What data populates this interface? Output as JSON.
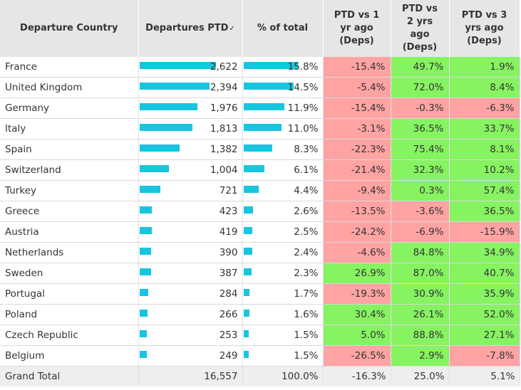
{
  "headers": {
    "country": "Departure Country",
    "departures": "Departures PTD",
    "share": "% of total",
    "vs1": [
      "PTD vs 1",
      "yr ago",
      "(Deps)"
    ],
    "vs2": [
      "PTD vs",
      "2 yrs",
      "ago",
      "(Deps)"
    ],
    "vs3": [
      "PTD vs 3",
      "yrs ago",
      "(Deps)"
    ]
  },
  "colors": {
    "bar": "#18c5de",
    "negative": "#ffa3a3",
    "positive": "#86f361",
    "header": "#e6e6e6"
  },
  "chart_data": {
    "type": "table",
    "columns": [
      "Departure Country",
      "Departures PTD",
      "% of total",
      "PTD vs 1 yr ago (Deps)",
      "PTD vs 2 yrs ago (Deps)",
      "PTD vs 3 yrs ago (Deps)"
    ],
    "rows": [
      {
        "country": "France",
        "departures": 2622,
        "departures_label": "2,622",
        "share": 15.8,
        "share_label": "15.8%",
        "vs1": "-15.4%",
        "vs2": "49.7%",
        "vs3": "1.9%"
      },
      {
        "country": "United Kingdom",
        "departures": 2394,
        "departures_label": "2,394",
        "share": 14.5,
        "share_label": "14.5%",
        "vs1": "-5.4%",
        "vs2": "72.0%",
        "vs3": "8.4%"
      },
      {
        "country": "Germany",
        "departures": 1976,
        "departures_label": "1,976",
        "share": 11.9,
        "share_label": "11.9%",
        "vs1": "-15.4%",
        "vs2": "-0.3%",
        "vs3": "-6.3%"
      },
      {
        "country": "Italy",
        "departures": 1813,
        "departures_label": "1,813",
        "share": 11.0,
        "share_label": "11.0%",
        "vs1": "-3.1%",
        "vs2": "36.5%",
        "vs3": "33.7%"
      },
      {
        "country": "Spain",
        "departures": 1382,
        "departures_label": "1,382",
        "share": 8.3,
        "share_label": "8.3%",
        "vs1": "-22.3%",
        "vs2": "75.4%",
        "vs3": "8.1%"
      },
      {
        "country": "Switzerland",
        "departures": 1004,
        "departures_label": "1,004",
        "share": 6.1,
        "share_label": "6.1%",
        "vs1": "-21.4%",
        "vs2": "32.3%",
        "vs3": "10.2%"
      },
      {
        "country": "Turkey",
        "departures": 721,
        "departures_label": "721",
        "share": 4.4,
        "share_label": "4.4%",
        "vs1": "-9.4%",
        "vs2": "0.3%",
        "vs3": "57.4%"
      },
      {
        "country": "Greece",
        "departures": 423,
        "departures_label": "423",
        "share": 2.6,
        "share_label": "2.6%",
        "vs1": "-13.5%",
        "vs2": "-3.6%",
        "vs3": "36.5%"
      },
      {
        "country": "Austria",
        "departures": 419,
        "departures_label": "419",
        "share": 2.5,
        "share_label": "2.5%",
        "vs1": "-24.2%",
        "vs2": "-6.9%",
        "vs3": "-15.9%"
      },
      {
        "country": "Netherlands",
        "departures": 390,
        "departures_label": "390",
        "share": 2.4,
        "share_label": "2.4%",
        "vs1": "-4.6%",
        "vs2": "84.8%",
        "vs3": "34.9%"
      },
      {
        "country": "Sweden",
        "departures": 387,
        "departures_label": "387",
        "share": 2.3,
        "share_label": "2.3%",
        "vs1": "26.9%",
        "vs2": "87.0%",
        "vs3": "40.7%"
      },
      {
        "country": "Portugal",
        "departures": 284,
        "departures_label": "284",
        "share": 1.7,
        "share_label": "1.7%",
        "vs1": "-19.3%",
        "vs2": "30.9%",
        "vs3": "35.9%"
      },
      {
        "country": "Poland",
        "departures": 266,
        "departures_label": "266",
        "share": 1.6,
        "share_label": "1.6%",
        "vs1": "30.4%",
        "vs2": "26.1%",
        "vs3": "52.0%"
      },
      {
        "country": "Czech Republic",
        "departures": 253,
        "departures_label": "253",
        "share": 1.5,
        "share_label": "1.5%",
        "vs1": "5.0%",
        "vs2": "88.8%",
        "vs3": "27.1%"
      },
      {
        "country": "Belgium",
        "departures": 249,
        "departures_label": "249",
        "share": 1.5,
        "share_label": "1.5%",
        "vs1": "-26.5%",
        "vs2": "2.9%",
        "vs3": "-7.8%"
      }
    ],
    "total": {
      "label": "Grand Total",
      "departures": "16,557",
      "share": "100.0%",
      "vs1": "-16.3%",
      "vs2": "25.0%",
      "vs3": "5.1%"
    }
  }
}
